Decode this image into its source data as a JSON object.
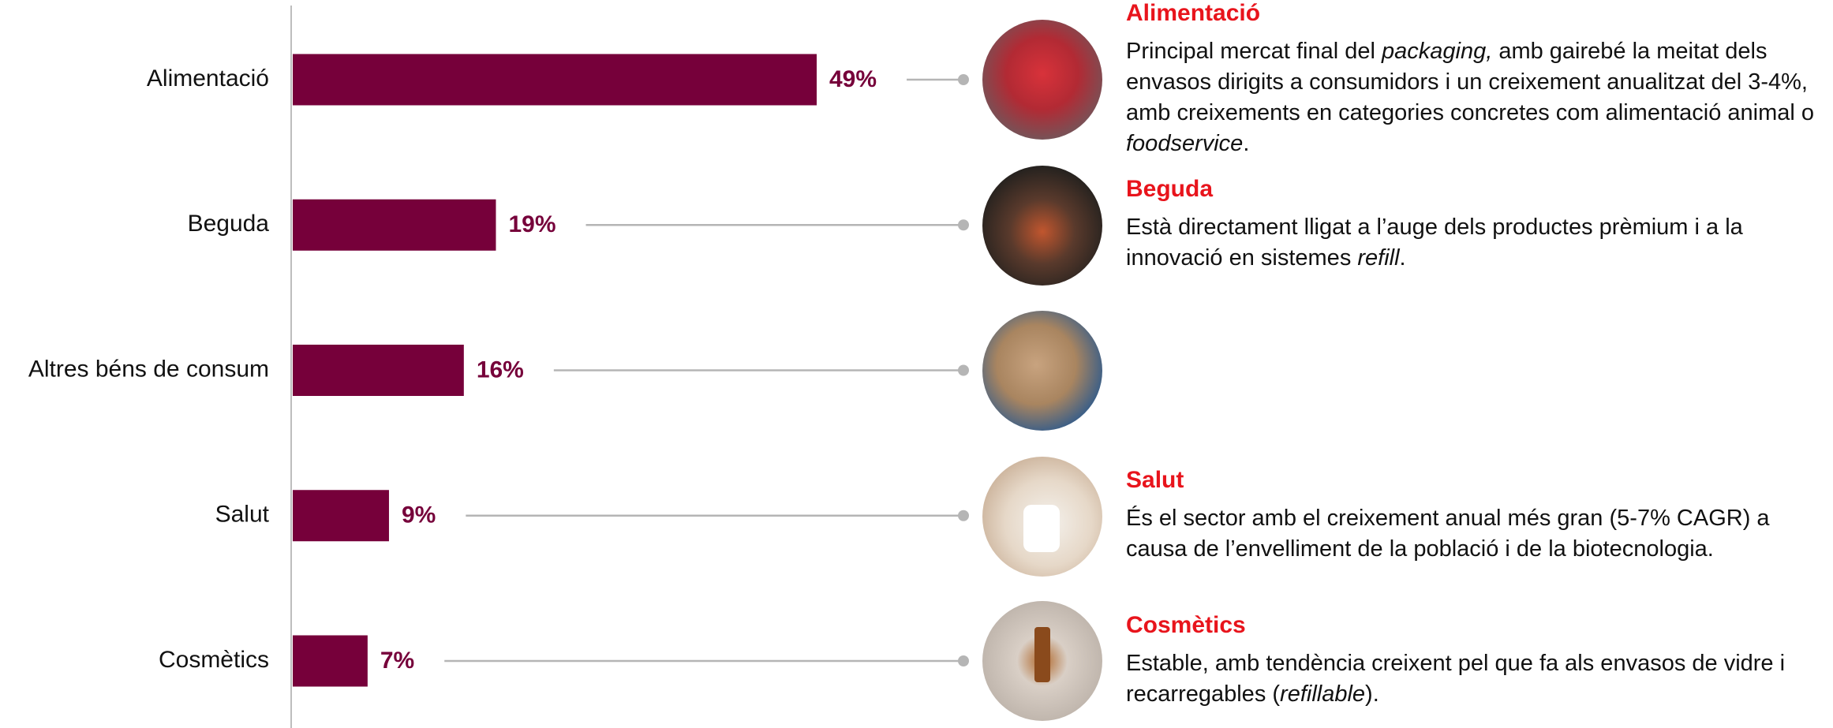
{
  "chart_data": {
    "type": "bar",
    "orientation": "horizontal",
    "categories": [
      "Alimentació",
      "Beguda",
      "Altres béns de consum",
      "Salut",
      "Cosmètics"
    ],
    "values": [
      49,
      19,
      16,
      9,
      7
    ],
    "value_labels": [
      "49%",
      "19%",
      "16%",
      "9%",
      "7%"
    ],
    "color": "#76003a",
    "annotation_title_color": "#e8141c",
    "annotations": [
      {
        "title": "Alimentació",
        "text": [
          {
            "text": "Principal mercat final del ",
            "italic": false
          },
          {
            "text": "packaging,",
            "italic": true
          },
          {
            "text": " amb gairebé la meitat dels envasos dirigits a consumidors i un creixement anualitzat del 3-4%, amb creixements en categories concretes com alimentació animal o ",
            "italic": false
          },
          {
            "text": "foodservice",
            "italic": true
          },
          {
            "text": ".",
            "italic": false
          }
        ]
      },
      {
        "title": "Beguda",
        "text": [
          {
            "text": "Està directament lligat a l’auge dels productes prèmium i a la innovació en sistemes ",
            "italic": false
          },
          {
            "text": "refill",
            "italic": true
          },
          {
            "text": ".",
            "italic": false
          }
        ]
      },
      null,
      {
        "title": "Salut",
        "text": [
          {
            "text": "És el sector amb el creixement anual més gran (5-7% CAGR) a causa de l’envelliment de la població i de la biotecnologia.",
            "italic": false
          }
        ]
      },
      {
        "title": "Cosmètics",
        "text": [
          {
            "text": "Estable, amb tendència creixent pel que fa als envasos de vidre i recarregables (",
            "italic": false
          },
          {
            "text": "refillable",
            "italic": true
          },
          {
            "text": ").",
            "italic": false
          }
        ]
      }
    ]
  }
}
